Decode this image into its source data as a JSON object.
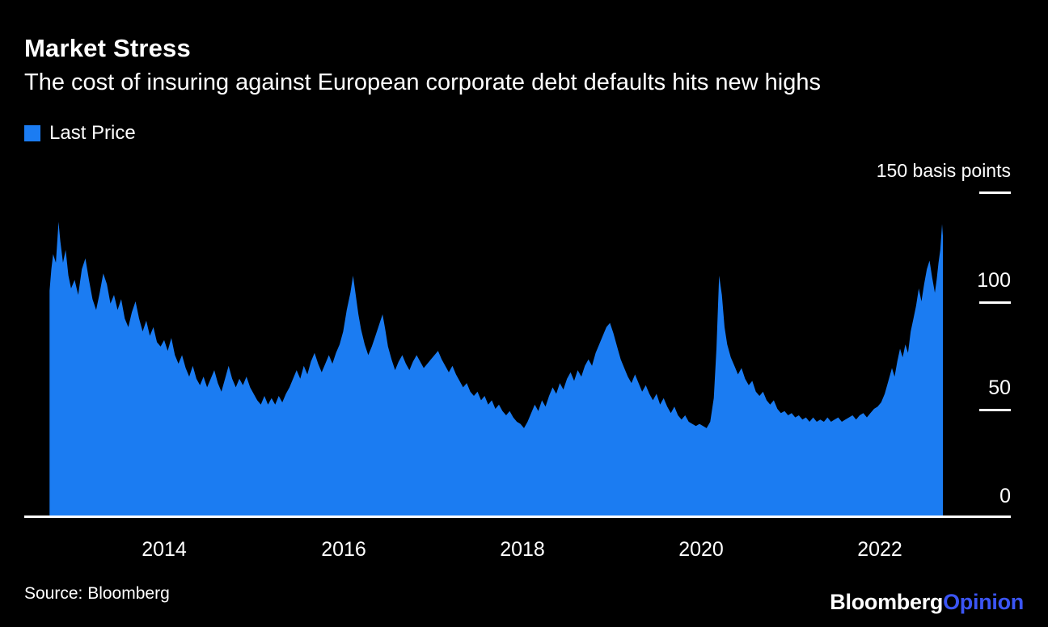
{
  "colors": {
    "background": "#000000",
    "text": "#ffffff",
    "accent": "#1b7cf2",
    "logo_accent": "#3b55f5"
  },
  "chart_data": {
    "type": "area",
    "title": "Market Stress",
    "subtitle": "The cost of insuring against European corporate debt defaults hits new highs",
    "legend_label": "Last Price",
    "unit": "basis points",
    "ylim": [
      0,
      150
    ],
    "x_range": [
      2012.72,
      2022.7
    ],
    "grid": "off",
    "legend_position": "top-left",
    "y_ticks": [
      {
        "label": "150 basis points",
        "value": 150
      },
      {
        "label": "100",
        "value": 100
      },
      {
        "label": "50",
        "value": 50
      },
      {
        "label": "0",
        "value": 0
      }
    ],
    "x_ticks": [
      "2014",
      "2016",
      "2018",
      "2020",
      "2022"
    ],
    "series_name": "Last Price",
    "points": [
      [
        2012.72,
        105
      ],
      [
        2012.74,
        115
      ],
      [
        2012.76,
        122
      ],
      [
        2012.79,
        118
      ],
      [
        2012.82,
        137
      ],
      [
        2012.84,
        128
      ],
      [
        2012.87,
        118
      ],
      [
        2012.9,
        124
      ],
      [
        2012.93,
        112
      ],
      [
        2012.96,
        106
      ],
      [
        2013.0,
        110
      ],
      [
        2013.04,
        103
      ],
      [
        2013.08,
        115
      ],
      [
        2013.12,
        120
      ],
      [
        2013.16,
        110
      ],
      [
        2013.2,
        101
      ],
      [
        2013.24,
        96
      ],
      [
        2013.28,
        104
      ],
      [
        2013.32,
        113
      ],
      [
        2013.36,
        108
      ],
      [
        2013.4,
        99
      ],
      [
        2013.44,
        103
      ],
      [
        2013.48,
        96
      ],
      [
        2013.52,
        101
      ],
      [
        2013.56,
        92
      ],
      [
        2013.6,
        88
      ],
      [
        2013.64,
        95
      ],
      [
        2013.68,
        100
      ],
      [
        2013.72,
        92
      ],
      [
        2013.76,
        86
      ],
      [
        2013.8,
        91
      ],
      [
        2013.84,
        84
      ],
      [
        2013.88,
        88
      ],
      [
        2013.92,
        81
      ],
      [
        2013.96,
        79
      ],
      [
        2014.0,
        82
      ],
      [
        2014.04,
        77
      ],
      [
        2014.08,
        83
      ],
      [
        2014.12,
        75
      ],
      [
        2014.16,
        71
      ],
      [
        2014.2,
        75
      ],
      [
        2014.24,
        69
      ],
      [
        2014.28,
        65
      ],
      [
        2014.32,
        70
      ],
      [
        2014.36,
        64
      ],
      [
        2014.4,
        61
      ],
      [
        2014.44,
        65
      ],
      [
        2014.48,
        60
      ],
      [
        2014.52,
        64
      ],
      [
        2014.56,
        68
      ],
      [
        2014.6,
        62
      ],
      [
        2014.64,
        58
      ],
      [
        2014.68,
        64
      ],
      [
        2014.72,
        70
      ],
      [
        2014.76,
        64
      ],
      [
        2014.8,
        60
      ],
      [
        2014.84,
        64
      ],
      [
        2014.88,
        61
      ],
      [
        2014.92,
        65
      ],
      [
        2014.96,
        60
      ],
      [
        2015.0,
        57
      ],
      [
        2015.04,
        54
      ],
      [
        2015.08,
        52
      ],
      [
        2015.12,
        56
      ],
      [
        2015.16,
        52
      ],
      [
        2015.2,
        55
      ],
      [
        2015.24,
        52
      ],
      [
        2015.28,
        56
      ],
      [
        2015.32,
        53
      ],
      [
        2015.36,
        57
      ],
      [
        2015.4,
        60
      ],
      [
        2015.44,
        64
      ],
      [
        2015.48,
        68
      ],
      [
        2015.52,
        64
      ],
      [
        2015.56,
        70
      ],
      [
        2015.6,
        66
      ],
      [
        2015.64,
        72
      ],
      [
        2015.68,
        76
      ],
      [
        2015.72,
        71
      ],
      [
        2015.76,
        67
      ],
      [
        2015.8,
        71
      ],
      [
        2015.84,
        75
      ],
      [
        2015.88,
        71
      ],
      [
        2015.92,
        76
      ],
      [
        2015.96,
        80
      ],
      [
        2016.0,
        86
      ],
      [
        2016.04,
        96
      ],
      [
        2016.08,
        104
      ],
      [
        2016.11,
        112
      ],
      [
        2016.14,
        103
      ],
      [
        2016.17,
        94
      ],
      [
        2016.2,
        87
      ],
      [
        2016.24,
        80
      ],
      [
        2016.28,
        75
      ],
      [
        2016.32,
        79
      ],
      [
        2016.36,
        84
      ],
      [
        2016.4,
        89
      ],
      [
        2016.44,
        94
      ],
      [
        2016.47,
        87
      ],
      [
        2016.5,
        79
      ],
      [
        2016.54,
        73
      ],
      [
        2016.58,
        68
      ],
      [
        2016.62,
        72
      ],
      [
        2016.66,
        75
      ],
      [
        2016.7,
        71
      ],
      [
        2016.74,
        68
      ],
      [
        2016.78,
        72
      ],
      [
        2016.82,
        75
      ],
      [
        2016.86,
        72
      ],
      [
        2016.9,
        69
      ],
      [
        2016.94,
        71
      ],
      [
        2016.98,
        73
      ],
      [
        2017.02,
        75
      ],
      [
        2017.06,
        77
      ],
      [
        2017.1,
        73
      ],
      [
        2017.14,
        70
      ],
      [
        2017.18,
        67
      ],
      [
        2017.22,
        70
      ],
      [
        2017.26,
        66
      ],
      [
        2017.3,
        63
      ],
      [
        2017.34,
        60
      ],
      [
        2017.38,
        62
      ],
      [
        2017.42,
        58
      ],
      [
        2017.46,
        56
      ],
      [
        2017.5,
        58
      ],
      [
        2017.54,
        54
      ],
      [
        2017.58,
        56
      ],
      [
        2017.62,
        52
      ],
      [
        2017.66,
        54
      ],
      [
        2017.7,
        50
      ],
      [
        2017.74,
        52
      ],
      [
        2017.78,
        49
      ],
      [
        2017.82,
        47
      ],
      [
        2017.86,
        49
      ],
      [
        2017.9,
        46
      ],
      [
        2017.94,
        44
      ],
      [
        2017.98,
        43
      ],
      [
        2018.02,
        41
      ],
      [
        2018.06,
        44
      ],
      [
        2018.1,
        48
      ],
      [
        2018.14,
        52
      ],
      [
        2018.18,
        49
      ],
      [
        2018.22,
        54
      ],
      [
        2018.26,
        51
      ],
      [
        2018.3,
        56
      ],
      [
        2018.34,
        60
      ],
      [
        2018.38,
        57
      ],
      [
        2018.42,
        62
      ],
      [
        2018.46,
        59
      ],
      [
        2018.5,
        64
      ],
      [
        2018.54,
        67
      ],
      [
        2018.58,
        63
      ],
      [
        2018.62,
        68
      ],
      [
        2018.66,
        65
      ],
      [
        2018.7,
        70
      ],
      [
        2018.74,
        73
      ],
      [
        2018.78,
        70
      ],
      [
        2018.82,
        76
      ],
      [
        2018.86,
        80
      ],
      [
        2018.9,
        84
      ],
      [
        2018.94,
        88
      ],
      [
        2018.98,
        90
      ],
      [
        2019.02,
        85
      ],
      [
        2019.06,
        79
      ],
      [
        2019.1,
        73
      ],
      [
        2019.14,
        69
      ],
      [
        2019.18,
        65
      ],
      [
        2019.22,
        62
      ],
      [
        2019.26,
        66
      ],
      [
        2019.3,
        62
      ],
      [
        2019.34,
        58
      ],
      [
        2019.38,
        61
      ],
      [
        2019.42,
        57
      ],
      [
        2019.46,
        54
      ],
      [
        2019.5,
        57
      ],
      [
        2019.54,
        52
      ],
      [
        2019.58,
        55
      ],
      [
        2019.62,
        51
      ],
      [
        2019.66,
        48
      ],
      [
        2019.7,
        51
      ],
      [
        2019.74,
        47
      ],
      [
        2019.78,
        45
      ],
      [
        2019.82,
        47
      ],
      [
        2019.86,
        44
      ],
      [
        2019.9,
        43
      ],
      [
        2019.94,
        42
      ],
      [
        2019.98,
        43
      ],
      [
        2020.02,
        42
      ],
      [
        2020.06,
        41
      ],
      [
        2020.1,
        44
      ],
      [
        2020.14,
        55
      ],
      [
        2020.17,
        78
      ],
      [
        2020.2,
        112
      ],
      [
        2020.23,
        103
      ],
      [
        2020.26,
        88
      ],
      [
        2020.29,
        80
      ],
      [
        2020.33,
        74
      ],
      [
        2020.37,
        70
      ],
      [
        2020.41,
        66
      ],
      [
        2020.45,
        69
      ],
      [
        2020.49,
        64
      ],
      [
        2020.53,
        61
      ],
      [
        2020.57,
        63
      ],
      [
        2020.61,
        58
      ],
      [
        2020.65,
        56
      ],
      [
        2020.69,
        58
      ],
      [
        2020.73,
        54
      ],
      [
        2020.77,
        52
      ],
      [
        2020.81,
        54
      ],
      [
        2020.85,
        50
      ],
      [
        2020.89,
        48
      ],
      [
        2020.93,
        49
      ],
      [
        2020.97,
        47
      ],
      [
        2021.01,
        48
      ],
      [
        2021.05,
        46
      ],
      [
        2021.09,
        47
      ],
      [
        2021.13,
        45
      ],
      [
        2021.17,
        46
      ],
      [
        2021.21,
        44
      ],
      [
        2021.25,
        46
      ],
      [
        2021.29,
        44
      ],
      [
        2021.33,
        45
      ],
      [
        2021.37,
        44
      ],
      [
        2021.41,
        46
      ],
      [
        2021.45,
        44
      ],
      [
        2021.49,
        45
      ],
      [
        2021.53,
        46
      ],
      [
        2021.57,
        44
      ],
      [
        2021.61,
        45
      ],
      [
        2021.65,
        46
      ],
      [
        2021.69,
        47
      ],
      [
        2021.73,
        45
      ],
      [
        2021.77,
        47
      ],
      [
        2021.81,
        48
      ],
      [
        2021.85,
        46
      ],
      [
        2021.89,
        48
      ],
      [
        2021.93,
        50
      ],
      [
        2021.97,
        51
      ],
      [
        2022.01,
        53
      ],
      [
        2022.05,
        57
      ],
      [
        2022.09,
        63
      ],
      [
        2022.13,
        69
      ],
      [
        2022.16,
        65
      ],
      [
        2022.19,
        72
      ],
      [
        2022.22,
        78
      ],
      [
        2022.25,
        74
      ],
      [
        2022.28,
        80
      ],
      [
        2022.31,
        76
      ],
      [
        2022.34,
        86
      ],
      [
        2022.37,
        92
      ],
      [
        2022.4,
        98
      ],
      [
        2022.43,
        106
      ],
      [
        2022.46,
        100
      ],
      [
        2022.49,
        108
      ],
      [
        2022.52,
        115
      ],
      [
        2022.55,
        119
      ],
      [
        2022.58,
        111
      ],
      [
        2022.61,
        104
      ],
      [
        2022.63,
        110
      ],
      [
        2022.65,
        118
      ],
      [
        2022.67,
        124
      ],
      [
        2022.69,
        136
      ],
      [
        2022.7,
        130
      ]
    ]
  },
  "footer": {
    "source": "Source: Bloomberg",
    "logo": {
      "primary": "Bloomberg",
      "secondary": "Opinion"
    }
  }
}
